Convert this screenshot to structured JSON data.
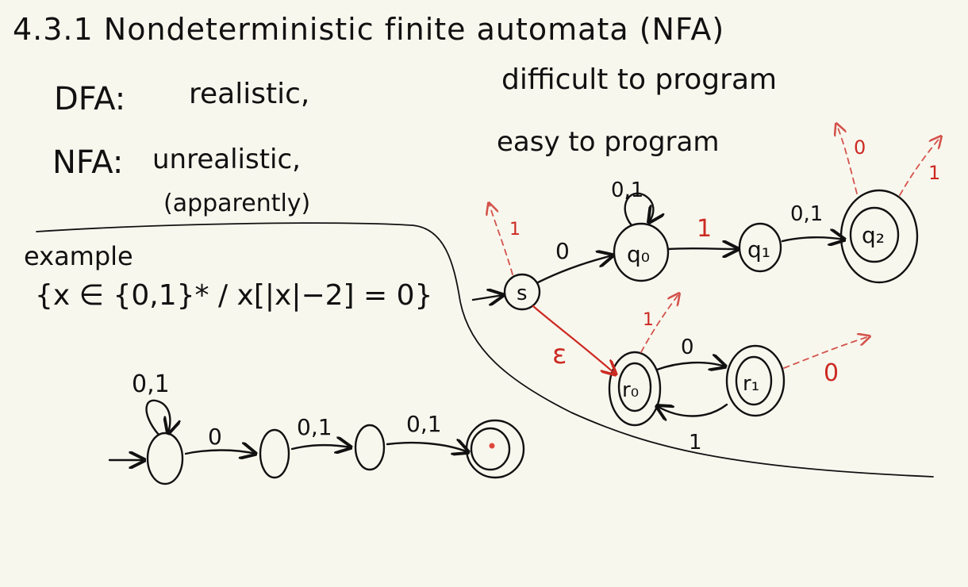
{
  "heading": "4.3.1 Nondeterministic finite automata (NFA)",
  "notes": {
    "dfa_label": "DFA:",
    "dfa_value": "realistic,",
    "dfa_comment": "difficult to program",
    "nfa_label": "NFA:",
    "nfa_value": "unrealistic,",
    "nfa_aside": "(apparently)",
    "nfa_comment": "easy to program"
  },
  "example": {
    "label": "example",
    "set": "{x ∈ {0,1}* / x[|x|−2] = 0}"
  },
  "example_nfa": {
    "transitions": [
      {
        "from": "s0",
        "to": "s0",
        "label": "0,1"
      },
      {
        "from": "s0",
        "to": "s1",
        "label": "0"
      },
      {
        "from": "s1",
        "to": "s2",
        "label": "0,1"
      },
      {
        "from": "s2",
        "to": "s3",
        "label": "0,1"
      }
    ]
  },
  "right_nfa": {
    "start": "s",
    "states": {
      "q0": "q₀",
      "q1": "q₁",
      "q2": "q₂",
      "r0": "r₀",
      "r1": "r₁"
    },
    "labels": {
      "s_q0": "0",
      "q0_self": "0,1",
      "q0_q1": "1",
      "q1_q2": "0,1",
      "s_r0": "ε",
      "r0_r1": "0",
      "r1_r0": "1",
      "s_dead": "1",
      "q2_dead_0": "0",
      "q2_dead_1": "1",
      "r0_dead": "1",
      "r1_dead": "0"
    }
  }
}
